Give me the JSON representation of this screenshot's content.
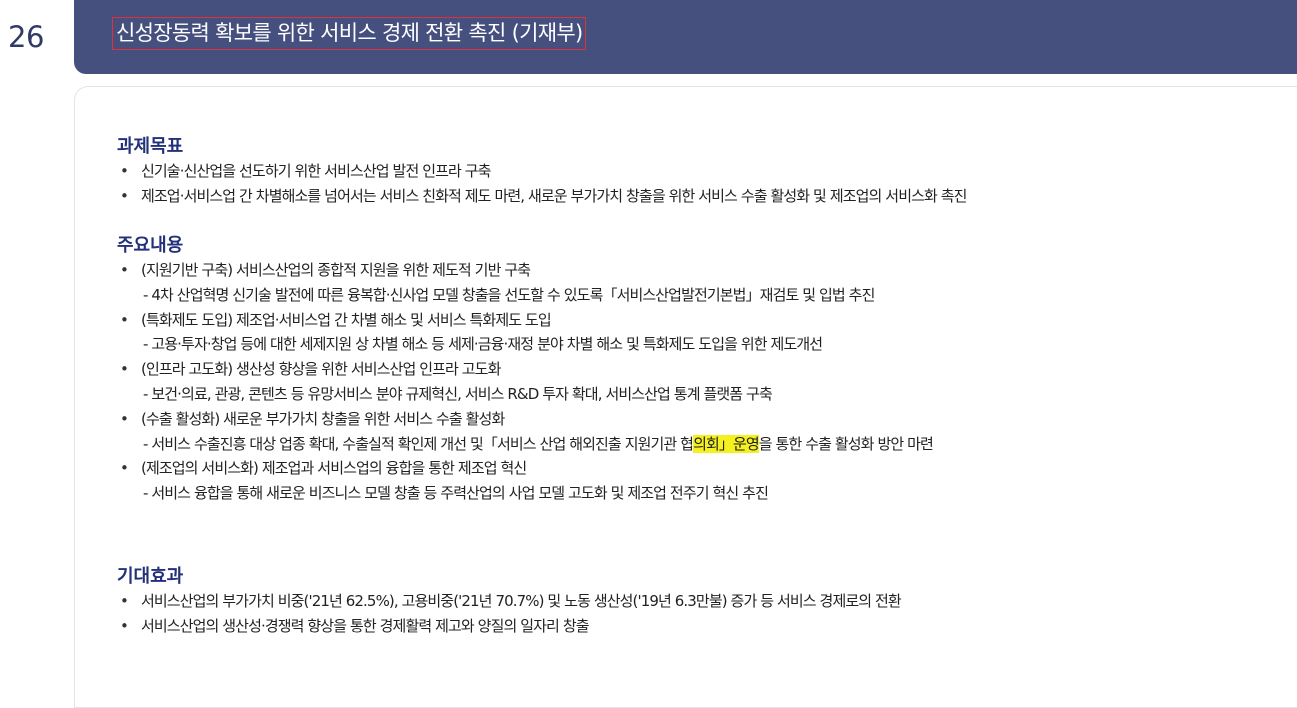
{
  "item_number": "26",
  "title": "신성장동력 확보를 위한 서비스 경제 전환 촉진 (기재부)",
  "bullet_char": "•",
  "goals": {
    "heading": "과제목표",
    "items": [
      "신기술·신산업을 선도하기 위한 서비스산업 발전 인프라 구축",
      "제조업·서비스업 간 차별해소를 넘어서는 서비스 친화적 제도 마련, 새로운 부가가치 창출을 위한 서비스 수출 활성화 및 제조업의 서비스화 촉진"
    ]
  },
  "contents": {
    "heading": "주요내용",
    "items": [
      {
        "main": "(지원기반 구축) 서비스산업의 종합적 지원을 위한 제도적 기반 구축",
        "sub": "- 4차 산업혁명 신기술 발전에 따른 융복합·신사업 모델 창출을 선도할 수 있도록「서비스산업발전기본법」재검토 및 입법 추진"
      },
      {
        "main": "(특화제도 도입) 제조업·서비스업 간 차별 해소 및 서비스 특화제도 도입",
        "sub": "- 고용·투자·창업 등에 대한 세제지원 상 차별 해소 등 세제·금융·재정 분야 차별 해소 및 특화제도 도입을 위한 제도개선"
      },
      {
        "main": "(인프라 고도화) 생산성 향상을 위한 서비스산업 인프라 고도화",
        "sub": "- 보건·의료, 관광, 콘텐츠 등 유망서비스 분야 규제혁신, 서비스 R&D 투자 확대, 서비스산업 통계 플랫폼 구축"
      },
      {
        "main": "(수출 활성화) 새로운 부가가치 창출을 위한 서비스 수출 활성화",
        "sub_before": "- 서비스 수출진흥 대상 업종 확대, 수출실적 확인제 개선 및「서비스 산업 해외진출 지원기관 협",
        "sub_highlight": "의회」운영",
        "sub_after": "을 통한 수출 활성화 방안 마련"
      },
      {
        "main": "(제조업의 서비스화) 제조업과 서비스업의 융합을 통한 제조업 혁신",
        "sub": "- 서비스 융합을 통해 새로운 비즈니스 모델 창출 등 주력산업의 사업 모델 고도화 및 제조업 전주기 혁신 추진"
      }
    ]
  },
  "effects": {
    "heading": "기대효과",
    "items": [
      "서비스산업의 부가가치 비중('21년 62.5%), 고용비중('21년 70.7%) 및 노동 생산성('19년 6.3만불) 증가 등 서비스 경제로의 전환",
      "서비스산업의 생산성·경쟁력 향상을 통한 경제활력 제고와 양질의 일자리 창출"
    ]
  },
  "colors": {
    "header_bg": "#46507e",
    "heading": "#23317a",
    "highlight": "#f5f01f"
  }
}
